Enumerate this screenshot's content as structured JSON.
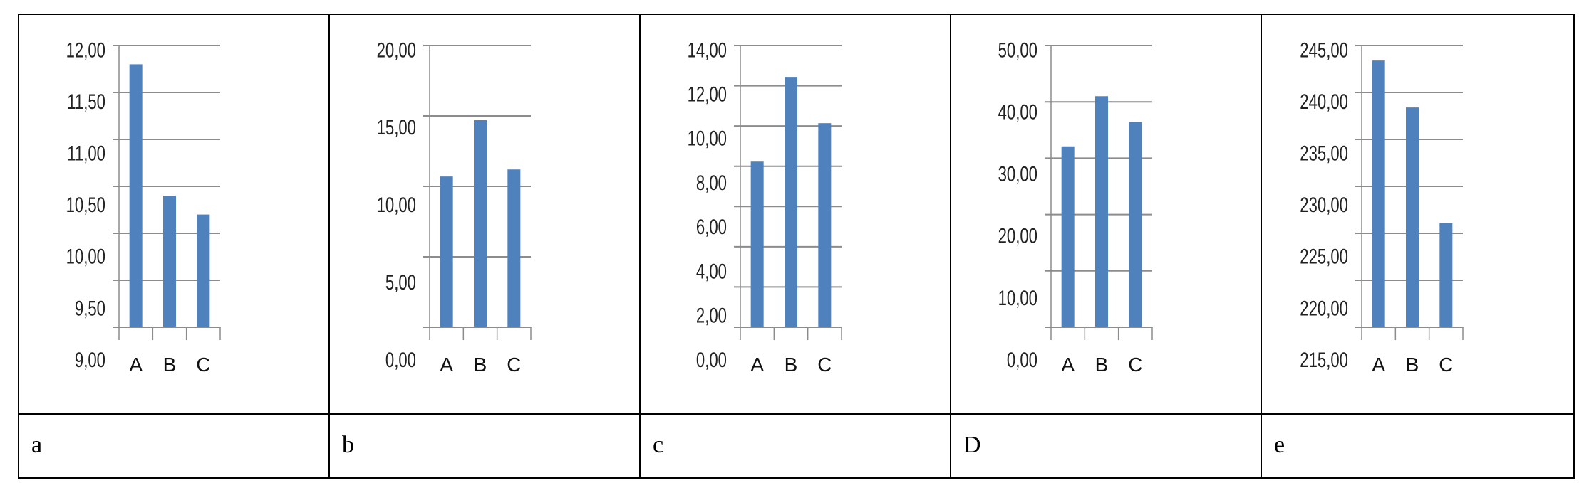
{
  "chart_data": [
    {
      "type": "bar",
      "panel_label": "a",
      "categories": [
        "A",
        "B",
        "C"
      ],
      "values": [
        11.8,
        10.4,
        10.2
      ],
      "ylim": [
        9,
        12
      ],
      "yticks": [
        "9,00",
        "9,50",
        "10,00",
        "10,50",
        "11,00",
        "11,50",
        "12,00"
      ],
      "ytick_values": [
        9,
        9.5,
        10,
        10.5,
        11,
        11.5,
        12
      ],
      "grid": true,
      "color": "#4f81bd"
    },
    {
      "type": "bar",
      "panel_label": "b",
      "categories": [
        "A",
        "B",
        "C"
      ],
      "values": [
        10.7,
        14.7,
        11.2
      ],
      "ylim": [
        0,
        20
      ],
      "yticks": [
        "0,00",
        "5,00",
        "10,00",
        "15,00",
        "20,00"
      ],
      "ytick_values": [
        0,
        5,
        10,
        15,
        20
      ],
      "grid": true,
      "color": "#4f81bd"
    },
    {
      "type": "bar",
      "panel_label": "c",
      "categories": [
        "A",
        "B",
        "C"
      ],
      "values": [
        8.23,
        12.44,
        10.14
      ],
      "ylim": [
        0,
        14
      ],
      "yticks": [
        "0,00",
        "2,00",
        "4,00",
        "6,00",
        "8,00",
        "10,00",
        "12,00",
        "14,00"
      ],
      "ytick_values": [
        0,
        2,
        4,
        6,
        8,
        10,
        12,
        14
      ],
      "grid": true,
      "color": "#4f81bd"
    },
    {
      "type": "bar",
      "panel_label": "D",
      "categories": [
        "A",
        "B",
        "C"
      ],
      "values": [
        32.1,
        41.0,
        36.4
      ],
      "ylim": [
        0,
        50
      ],
      "yticks": [
        "0,00",
        "10,00",
        "20,00",
        "30,00",
        "40,00",
        "50,00"
      ],
      "ytick_values": [
        0,
        10,
        20,
        30,
        40,
        50
      ],
      "grid": true,
      "color": "#4f81bd"
    },
    {
      "type": "bar",
      "panel_label": "e",
      "categories": [
        "A",
        "B",
        "C"
      ],
      "values": [
        243.4,
        238.4,
        226.1
      ],
      "ylim": [
        215,
        245
      ],
      "yticks": [
        "215,00",
        "220,00",
        "225,00",
        "230,00",
        "235,00",
        "240,00",
        "245,00"
      ],
      "ytick_values": [
        215,
        220,
        225,
        230,
        235,
        240,
        245
      ],
      "grid": true,
      "color": "#4f81bd"
    }
  ]
}
